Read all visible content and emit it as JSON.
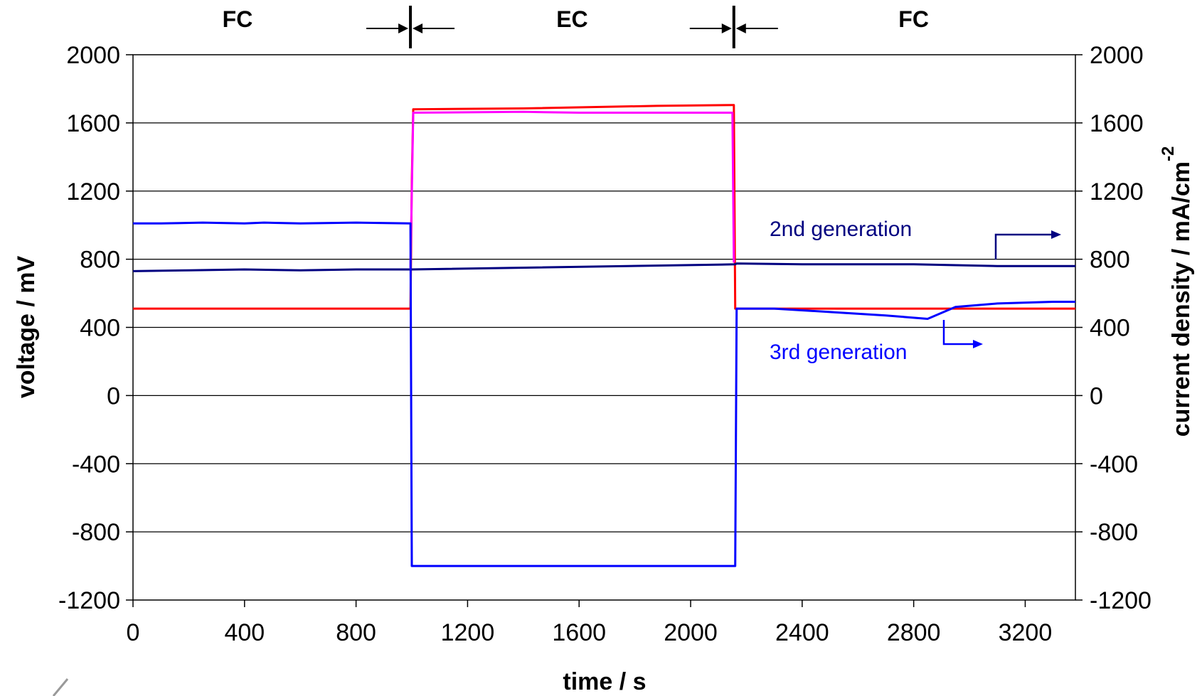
{
  "chart_data": {
    "type": "line",
    "xlabel": "time / s",
    "ylabel_left": "voltage / mV",
    "ylabel_right": "current density / mA/cm",
    "ylabel_right_superscript": "-2",
    "xlim": [
      0,
      3380
    ],
    "ylim": [
      -1200,
      2000
    ],
    "x_ticks": [
      "0",
      "400",
      "800",
      "1200",
      "1600",
      "2000",
      "2400",
      "2800",
      "3200"
    ],
    "y_ticks_left": [
      "2000",
      "1600",
      "1200",
      "800",
      "400",
      "0",
      "-400",
      "-800",
      "-1200"
    ],
    "y_ticks_right": [
      "2000",
      "1600",
      "1200",
      "800",
      "400",
      "0",
      "-400",
      "-800",
      "-1200"
    ],
    "grid": "horizontal",
    "phases": [
      {
        "label": "FC",
        "x_center": 375
      },
      {
        "label": "EC",
        "x_center": 1575
      },
      {
        "label": "FC",
        "x_center": 2800
      }
    ],
    "phase_boundaries": [
      995,
      2155
    ],
    "series": [
      {
        "color": "#ff0000",
        "x": [
          0,
          995,
          1000,
          1005,
          1400,
          1880,
          2150,
          2155,
          2160,
          3380
        ],
        "y": [
          510,
          510,
          1260,
          1680,
          1685,
          1700,
          1705,
          1705,
          510,
          510
        ]
      },
      {
        "color": "#ff00ff",
        "x": [
          995,
          1005,
          1400,
          1600,
          2150,
          2155
        ],
        "y": [
          750,
          1660,
          1665,
          1660,
          1660,
          780
        ]
      },
      {
        "color": "#000080",
        "x": [
          0,
          200,
          400,
          600,
          800,
          995,
          1000,
          2160,
          2165,
          2400,
          2800,
          3100,
          3380
        ],
        "y": [
          730,
          735,
          740,
          735,
          740,
          740,
          740,
          770,
          775,
          770,
          770,
          760,
          760
        ]
      },
      {
        "color": "#0000ff",
        "x": [
          0,
          100,
          250,
          400,
          470,
          600,
          800,
          995,
          1000,
          1005,
          2155,
          2160,
          2165,
          2300,
          2500,
          2700,
          2850,
          2950,
          3100,
          3300,
          3380
        ],
        "y": [
          1010,
          1010,
          1015,
          1010,
          1015,
          1010,
          1015,
          1010,
          -1000,
          -1000,
          -1000,
          -1000,
          510,
          510,
          490,
          470,
          450,
          520,
          540,
          550,
          550
        ]
      }
    ],
    "annotations": [
      {
        "text": "2nd generation",
        "color": "#000080"
      },
      {
        "text": "3rd generation",
        "color": "#0000ff"
      }
    ]
  }
}
